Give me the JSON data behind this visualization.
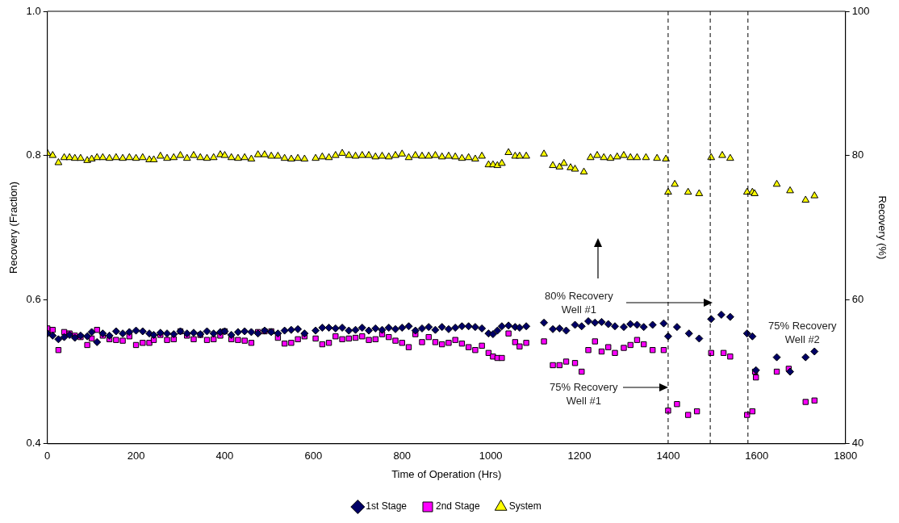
{
  "chart_data": {
    "type": "scatter",
    "xlabel": "Time of Operation (Hrs)",
    "ylabel": "Recovery (Fraction)",
    "y2label": "Recovery (%)",
    "xlim": [
      0,
      1800
    ],
    "xticks": [
      0,
      200,
      400,
      600,
      800,
      1000,
      1200,
      1400,
      1600,
      1800
    ],
    "ylim": [
      0.4,
      1
    ],
    "yticks": [
      0.4,
      0.6,
      0.8,
      {
        "value": 1,
        "label": "1.0"
      }
    ],
    "y2lim": [
      40,
      100
    ],
    "y2ticks": [
      40,
      60,
      80,
      100
    ],
    "grid": false,
    "legend": "bottom",
    "series": [
      {
        "name": "1st Stage",
        "color": "#000066",
        "marker": "diamond",
        "x": [
          0,
          12,
          25,
          38,
          50,
          62,
          75,
          90,
          100,
          112,
          125,
          140,
          155,
          170,
          185,
          200,
          215,
          230,
          240,
          255,
          270,
          285,
          300,
          315,
          330,
          345,
          360,
          375,
          390,
          400,
          415,
          430,
          445,
          460,
          475,
          490,
          505,
          520,
          535,
          550,
          565,
          580,
          605,
          620,
          635,
          650,
          665,
          680,
          695,
          710,
          725,
          740,
          755,
          770,
          785,
          800,
          815,
          830,
          845,
          860,
          875,
          890,
          905,
          920,
          935,
          950,
          965,
          980,
          995,
          1005,
          1015,
          1025,
          1040,
          1055,
          1065,
          1080,
          1120,
          1140,
          1155,
          1170,
          1190,
          1205,
          1220,
          1235,
          1250,
          1265,
          1280,
          1300,
          1315,
          1330,
          1345,
          1365,
          1390,
          1400,
          1420,
          1447,
          1470,
          1497,
          1520,
          1540,
          1578,
          1590,
          1598,
          1645,
          1675,
          1710,
          1730
        ],
        "values": [
          0.553,
          0.55,
          0.545,
          0.548,
          0.551,
          0.547,
          0.55,
          0.549,
          0.555,
          0.541,
          0.553,
          0.55,
          0.556,
          0.553,
          0.555,
          0.557,
          0.556,
          0.553,
          0.551,
          0.554,
          0.553,
          0.552,
          0.556,
          0.553,
          0.554,
          0.552,
          0.556,
          0.553,
          0.555,
          0.556,
          0.551,
          0.555,
          0.556,
          0.555,
          0.553,
          0.557,
          0.555,
          0.553,
          0.557,
          0.558,
          0.559,
          0.553,
          0.557,
          0.561,
          0.561,
          0.56,
          0.561,
          0.557,
          0.558,
          0.561,
          0.557,
          0.56,
          0.558,
          0.561,
          0.559,
          0.561,
          0.563,
          0.557,
          0.56,
          0.562,
          0.558,
          0.562,
          0.559,
          0.561,
          0.563,
          0.563,
          0.562,
          0.56,
          0.553,
          0.552,
          0.557,
          0.563,
          0.564,
          0.562,
          0.561,
          0.563,
          0.568,
          0.559,
          0.56,
          0.557,
          0.565,
          0.563,
          0.57,
          0.568,
          0.569,
          0.566,
          0.563,
          0.562,
          0.566,
          0.565,
          0.562,
          0.565,
          0.567,
          0.549,
          0.562,
          0.553,
          0.546,
          0.573,
          0.579,
          0.576,
          0.553,
          0.549,
          0.502,
          0.52,
          0.5,
          0.52,
          0.528
        ]
      },
      {
        "name": "2nd Stage",
        "color": "#ff00ff",
        "marker": "square",
        "x": [
          0,
          12,
          25,
          38,
          50,
          62,
          75,
          90,
          100,
          112,
          125,
          140,
          155,
          170,
          185,
          200,
          215,
          230,
          240,
          255,
          270,
          285,
          300,
          315,
          330,
          345,
          360,
          375,
          390,
          400,
          415,
          430,
          445,
          460,
          475,
          490,
          505,
          520,
          535,
          550,
          565,
          580,
          605,
          620,
          635,
          650,
          665,
          680,
          695,
          710,
          725,
          740,
          755,
          770,
          785,
          800,
          815,
          830,
          845,
          860,
          875,
          890,
          905,
          920,
          935,
          950,
          965,
          980,
          995,
          1005,
          1015,
          1025,
          1040,
          1055,
          1065,
          1080,
          1120,
          1140,
          1155,
          1170,
          1190,
          1205,
          1220,
          1235,
          1250,
          1265,
          1280,
          1300,
          1315,
          1330,
          1345,
          1365,
          1390,
          1400,
          1420,
          1445,
          1465,
          1497,
          1525,
          1540,
          1578,
          1590,
          1596,
          1598,
          1645,
          1672,
          1710,
          1730
        ],
        "values": [
          0.56,
          0.558,
          0.53,
          0.555,
          0.553,
          0.55,
          0.548,
          0.537,
          0.546,
          0.558,
          0.55,
          0.545,
          0.544,
          0.543,
          0.549,
          0.537,
          0.54,
          0.54,
          0.544,
          0.551,
          0.544,
          0.545,
          0.556,
          0.55,
          0.545,
          0.551,
          0.544,
          0.545,
          0.55,
          0.556,
          0.545,
          0.544,
          0.543,
          0.54,
          0.555,
          0.556,
          0.556,
          0.547,
          0.539,
          0.54,
          0.545,
          0.549,
          0.546,
          0.538,
          0.54,
          0.549,
          0.545,
          0.546,
          0.547,
          0.549,
          0.544,
          0.545,
          0.552,
          0.548,
          0.543,
          0.54,
          0.534,
          0.552,
          0.541,
          0.548,
          0.541,
          0.538,
          0.54,
          0.544,
          0.539,
          0.534,
          0.53,
          0.536,
          0.526,
          0.521,
          0.519,
          0.519,
          0.553,
          0.541,
          0.535,
          0.54,
          0.542,
          0.509,
          0.509,
          0.514,
          0.512,
          0.5,
          0.53,
          0.542,
          0.528,
          0.534,
          0.526,
          0.533,
          0.537,
          0.544,
          0.538,
          0.53,
          0.53,
          0.446,
          0.455,
          0.44,
          0.445,
          0.526,
          0.526,
          0.521,
          0.44,
          0.445,
          0.5,
          0.492,
          0.5,
          0.504,
          0.458,
          0.46
        ]
      },
      {
        "name": "System",
        "color": "#ffff00",
        "marker": "triangle",
        "x": [
          0,
          12,
          25,
          38,
          50,
          62,
          75,
          90,
          100,
          112,
          125,
          140,
          155,
          170,
          185,
          200,
          215,
          230,
          240,
          255,
          270,
          285,
          300,
          315,
          330,
          345,
          360,
          375,
          390,
          400,
          415,
          430,
          445,
          460,
          475,
          490,
          505,
          520,
          535,
          550,
          565,
          580,
          605,
          620,
          635,
          650,
          665,
          680,
          695,
          710,
          725,
          740,
          755,
          770,
          785,
          800,
          815,
          830,
          845,
          860,
          875,
          890,
          905,
          920,
          935,
          950,
          965,
          980,
          995,
          1005,
          1015,
          1025,
          1040,
          1055,
          1065,
          1080,
          1120,
          1140,
          1155,
          1165,
          1180,
          1190,
          1210,
          1225,
          1240,
          1255,
          1270,
          1285,
          1300,
          1315,
          1330,
          1350,
          1375,
          1395,
          1400,
          1415,
          1445,
          1470,
          1497,
          1522,
          1540,
          1578,
          1590,
          1595,
          1645,
          1675,
          1710,
          1730
        ],
        "values": [
          0.803,
          0.8,
          0.79,
          0.797,
          0.797,
          0.796,
          0.796,
          0.793,
          0.795,
          0.797,
          0.797,
          0.796,
          0.797,
          0.796,
          0.797,
          0.796,
          0.797,
          0.794,
          0.794,
          0.799,
          0.796,
          0.797,
          0.8,
          0.796,
          0.8,
          0.797,
          0.796,
          0.797,
          0.801,
          0.8,
          0.797,
          0.796,
          0.797,
          0.795,
          0.801,
          0.801,
          0.799,
          0.799,
          0.796,
          0.795,
          0.796,
          0.795,
          0.796,
          0.798,
          0.797,
          0.8,
          0.803,
          0.8,
          0.799,
          0.8,
          0.8,
          0.798,
          0.799,
          0.798,
          0.8,
          0.802,
          0.797,
          0.8,
          0.799,
          0.799,
          0.8,
          0.798,
          0.799,
          0.798,
          0.796,
          0.797,
          0.795,
          0.799,
          0.787,
          0.787,
          0.786,
          0.789,
          0.804,
          0.799,
          0.799,
          0.799,
          0.802,
          0.786,
          0.784,
          0.789,
          0.783,
          0.781,
          0.777,
          0.797,
          0.8,
          0.797,
          0.796,
          0.798,
          0.8,
          0.797,
          0.797,
          0.797,
          0.796,
          0.795,
          0.749,
          0.76,
          0.749,
          0.747,
          0.797,
          0.8,
          0.796,
          0.749,
          0.749,
          0.747,
          0.76,
          0.751,
          0.738,
          0.744
        ]
      }
    ],
    "ref_lines": [
      {
        "axis": "x",
        "value": 1400,
        "color": "#000000",
        "line_style": "dashed"
      },
      {
        "axis": "x",
        "value": 1495,
        "color": "#000000",
        "line_style": "dashed"
      },
      {
        "axis": "x",
        "value": 1580,
        "color": "#000000",
        "line_style": "dashed"
      }
    ],
    "annotations": [
      "80% Recovery\nWell #1",
      "75% Recovery\nWell #1",
      "75% Recovery\nWell #2"
    ]
  }
}
